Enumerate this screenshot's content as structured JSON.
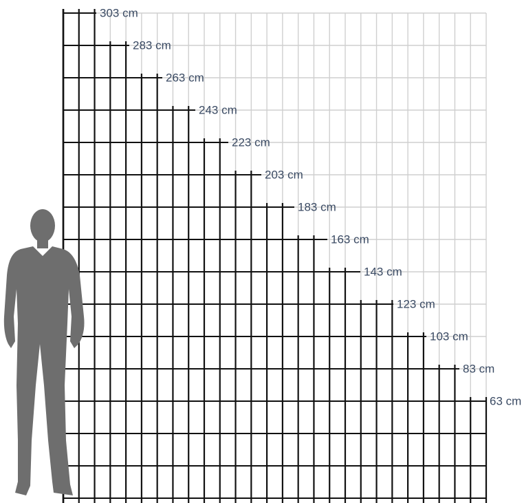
{
  "diagram": {
    "type": "fence-height-comparison",
    "height_unit": "cm",
    "post_count": 28,
    "heights": [
      {
        "value": 303,
        "label": "303 cm"
      },
      {
        "value": 283,
        "label": "283 cm"
      },
      {
        "value": 263,
        "label": "263 cm"
      },
      {
        "value": 243,
        "label": "243 cm"
      },
      {
        "value": 223,
        "label": "223 cm"
      },
      {
        "value": 203,
        "label": "203 cm"
      },
      {
        "value": 183,
        "label": "183 cm"
      },
      {
        "value": 163,
        "label": "163 cm"
      },
      {
        "value": 143,
        "label": "143 cm"
      },
      {
        "value": 123,
        "label": "123 cm"
      },
      {
        "value": 103,
        "label": "103 cm"
      },
      {
        "value": 83,
        "label": "83 cm"
      },
      {
        "value": 63,
        "label": "63 cm"
      }
    ],
    "colors": {
      "fence_dark": "#111111",
      "fence_light": "#cfcfcf",
      "label_text": "#3a4a63",
      "person_silhouette": "#6e6e6e"
    },
    "person_icon": "standing-man-silhouette-icon"
  }
}
